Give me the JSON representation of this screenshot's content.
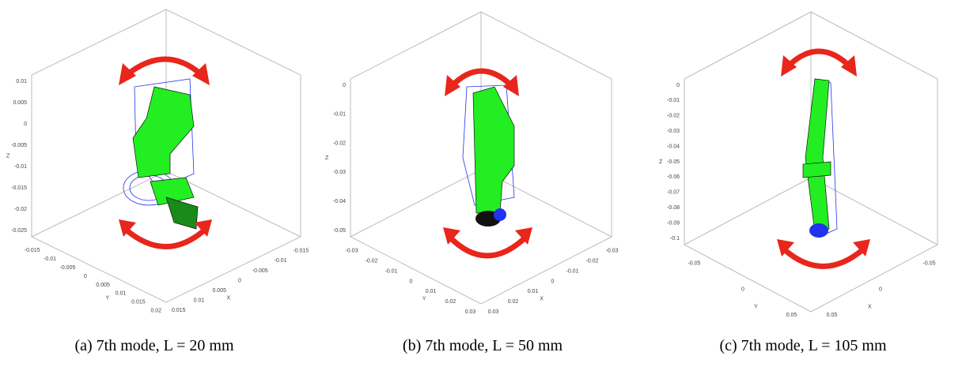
{
  "panels": [
    {
      "caption": "(a) 7th mode, L = 20 mm",
      "z_label": "Z",
      "x_label": "X",
      "y_label": "Y",
      "z_ticks": [
        "0.01",
        "0.005",
        "0",
        "-0.005",
        "-0.01",
        "-0.015",
        "-0.02",
        "-0.025"
      ],
      "y_ticks": [
        "-0.015",
        "-0.01",
        "-0.005",
        "0",
        "0.005",
        "0.01",
        "0.015",
        "0.02"
      ],
      "x_ticks": [
        "-0.015",
        "-0.01",
        "-0.005",
        "0",
        "0.005",
        "0.01",
        "0.015"
      ]
    },
    {
      "caption": "(b) 7th mode, L = 50 mm",
      "z_label": "Z",
      "x_label": "X",
      "y_label": "Y",
      "z_ticks": [
        "0",
        "-0.01",
        "-0.02",
        "-0.03",
        "-0.04",
        "-0.05"
      ],
      "y_ticks": [
        "-0.03",
        "-0.02",
        "-0.01",
        "0",
        "0.01",
        "0.02",
        "0.03"
      ],
      "x_ticks": [
        "-0.03",
        "-0.02",
        "-0.01",
        "0",
        "0.01",
        "0.02",
        "0.03"
      ]
    },
    {
      "caption": "(c) 7th mode, L = 105 mm",
      "z_label": "Z",
      "x_label": "X",
      "y_label": "Y",
      "z_ticks": [
        "0",
        "-0.01",
        "-0.02",
        "-0.03",
        "-0.04",
        "-0.05",
        "-0.06",
        "-0.07",
        "-0.08",
        "-0.09",
        "-0.1"
      ],
      "y_ticks": [
        "-0.05",
        "0",
        "0.05"
      ],
      "x_ticks": [
        "-0.05",
        "0",
        "0.05"
      ]
    }
  ]
}
